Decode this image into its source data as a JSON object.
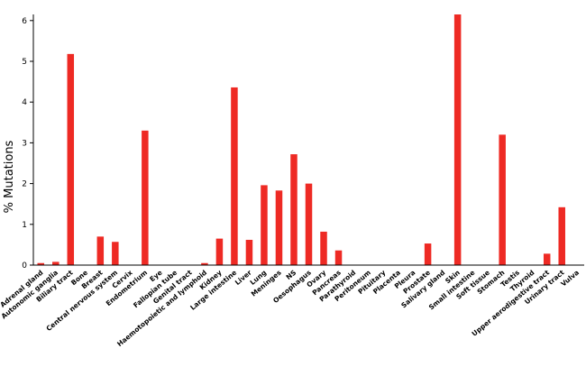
{
  "chart_data": {
    "type": "bar",
    "ylabel": "% Mutations",
    "xlabel": "",
    "ylim": [
      0,
      6.5
    ],
    "yticks": [
      "0",
      "1",
      "2",
      "3",
      "4",
      "5",
      "6"
    ],
    "grid": false,
    "bar_color": "#ee2a24",
    "categories": [
      "Adrenal gland",
      "Autonomic ganglia",
      "Biliary tract",
      "Bone",
      "Breast",
      "Central nervous system",
      "Cervix",
      "Endometrium",
      "Eye",
      "Fallopian tube",
      "Genital tract",
      "Haemotopoietic and lymphoid",
      "Kidney",
      "Large intestine",
      "Liver",
      "Lung",
      "Meninges",
      "NS",
      "Oesophagus",
      "Ovary",
      "Pancreas",
      "Parathyroid",
      "Peritoneum",
      "Pituitary",
      "Placenta",
      "Pleura",
      "Prostate",
      "Salivary gland",
      "Skin",
      "Small intestine",
      "Soft tissue",
      "Stomach",
      "Testis",
      "Thyroid",
      "Upper aerodigestive tract",
      "Urinary tract",
      "Vulva"
    ],
    "values": [
      0.05,
      0.08,
      5.18,
      0,
      0.7,
      0.57,
      0,
      3.3,
      0,
      0,
      0,
      0.05,
      0.65,
      4.36,
      0.62,
      1.96,
      1.83,
      2.72,
      2.0,
      0.82,
      0.36,
      0,
      0,
      0,
      0,
      0,
      0.53,
      0,
      6.15,
      0,
      0,
      3.2,
      0,
      0,
      0.28,
      1.42,
      0
    ]
  }
}
